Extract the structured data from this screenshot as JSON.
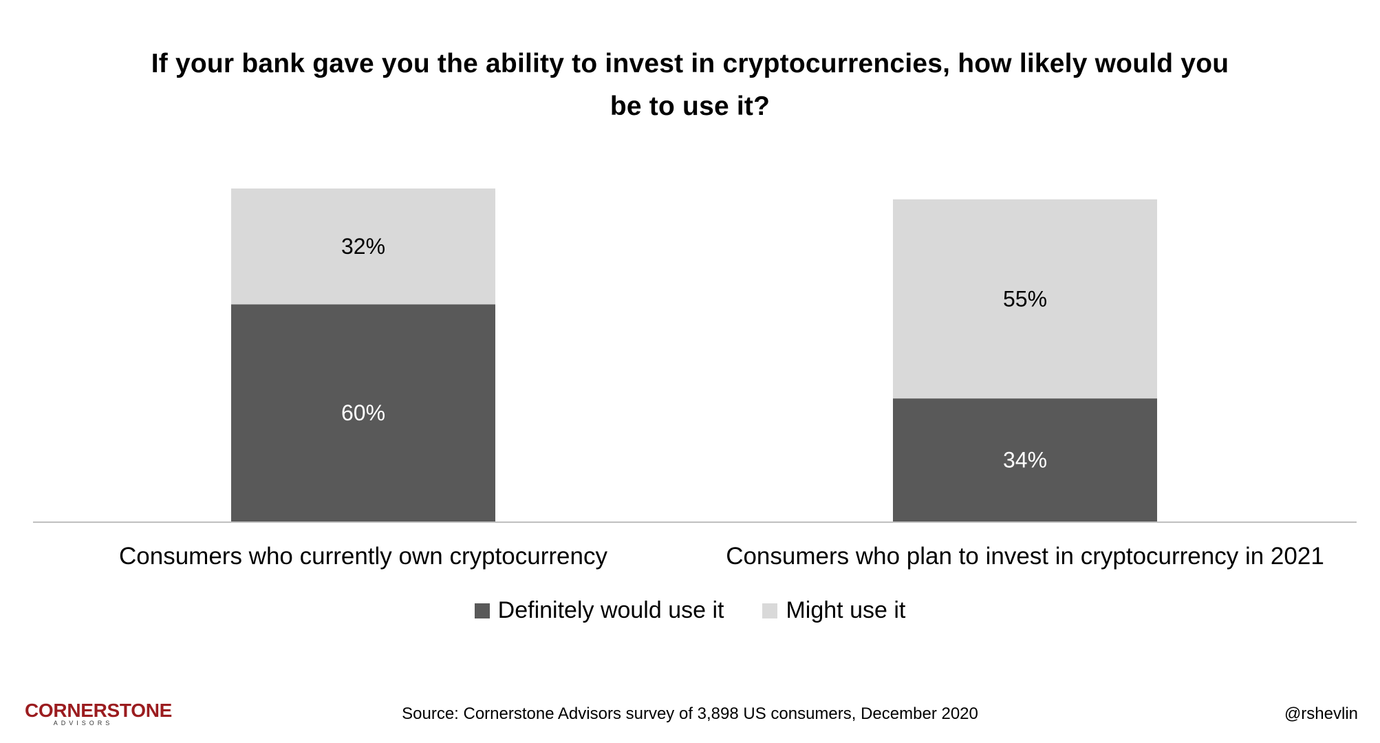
{
  "chart_data": {
    "type": "bar",
    "stacked": true,
    "title": "If your bank gave you the ability to invest in cryptocurrencies, how likely would you be to use it?",
    "categories": [
      "Consumers who currently own cryptocurrency",
      "Consumers who plan to invest in cryptocurrency in 2021"
    ],
    "series": [
      {
        "name": "Definitely would use it",
        "values": [
          60,
          34
        ],
        "labels": [
          "60%",
          "34%"
        ],
        "color": "#595959"
      },
      {
        "name": "Might use it",
        "values": [
          32,
          55
        ],
        "labels": [
          "32%",
          "55%"
        ],
        "color": "#d9d9d9"
      }
    ],
    "ylim": [
      0,
      100
    ],
    "grid": false,
    "legend_position": "bottom"
  },
  "footer": {
    "logo_main": "CORNERSTONE",
    "logo_sub": "ADVISORS",
    "source": "Source: Cornerstone Advisors survey of 3,898 US consumers, December 2020",
    "handle": "@rshevlin"
  }
}
